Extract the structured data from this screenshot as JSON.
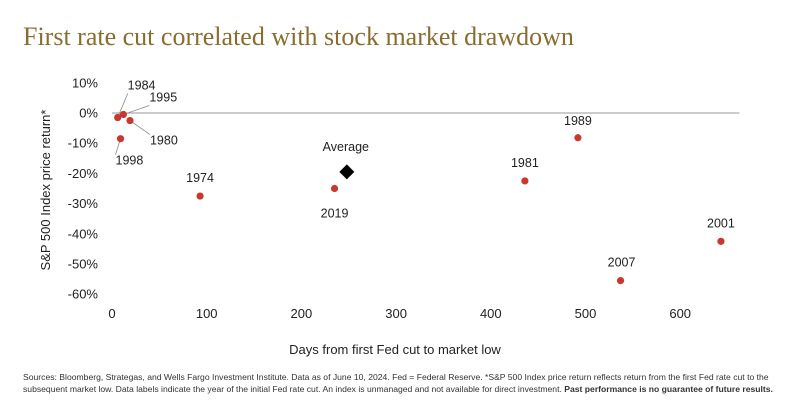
{
  "title": "First rate cut correlated with stock market drawdown",
  "chart_data": {
    "type": "scatter",
    "xlabel": "Days from first Fed cut to market low",
    "ylabel": "S&P 500 Index price return*",
    "xlim": [
      0,
      650
    ],
    "ylim": [
      -62,
      12
    ],
    "xticks": [
      0,
      100,
      200,
      300,
      400,
      500,
      600
    ],
    "yticks": [
      10,
      0,
      -10,
      -20,
      -30,
      -40,
      -50,
      -60
    ],
    "xtick_labels": [
      "0",
      "100",
      "200",
      "300",
      "400",
      "500",
      "600"
    ],
    "ytick_labels": [
      "10%",
      "0%",
      "-10%",
      "-20%",
      "-30%",
      "-40%",
      "-50%",
      "-60%"
    ],
    "points": [
      {
        "label": "1984",
        "x": 6,
        "y": -1.5
      },
      {
        "label": "1995",
        "x": 12,
        "y": -0.5
      },
      {
        "label": "1980",
        "x": 19,
        "y": -2.5
      },
      {
        "label": "1998",
        "x": 9,
        "y": -8.5
      },
      {
        "label": "1974",
        "x": 93,
        "y": -27.5
      },
      {
        "label": "2019",
        "x": 235,
        "y": -25
      },
      {
        "label": "1981",
        "x": 436,
        "y": -22.5
      },
      {
        "label": "1989",
        "x": 492,
        "y": -8.2
      },
      {
        "label": "2007",
        "x": 537,
        "y": -55.5
      },
      {
        "label": "2001",
        "x": 643,
        "y": -42.5
      }
    ],
    "average": {
      "label": "Average",
      "x": 248,
      "y": -19.5
    },
    "colors": {
      "point": "#c8382c",
      "average": "#000000",
      "zero_line": "#999999"
    }
  },
  "footer": {
    "text": "Sources: Bloomberg, Strategas, and Wells Fargo Investment Institute. Data as of June 10, 2024. Fed = Federal Reserve. *S&P 500 Index price return reflects return from the first Fed rate cut to the subsequent market low. Data labels indicate the year of the initial Fed rate cut. An index is unmanaged and not available for direct investment. ",
    "bold": "Past performance is no guarantee of future results."
  }
}
